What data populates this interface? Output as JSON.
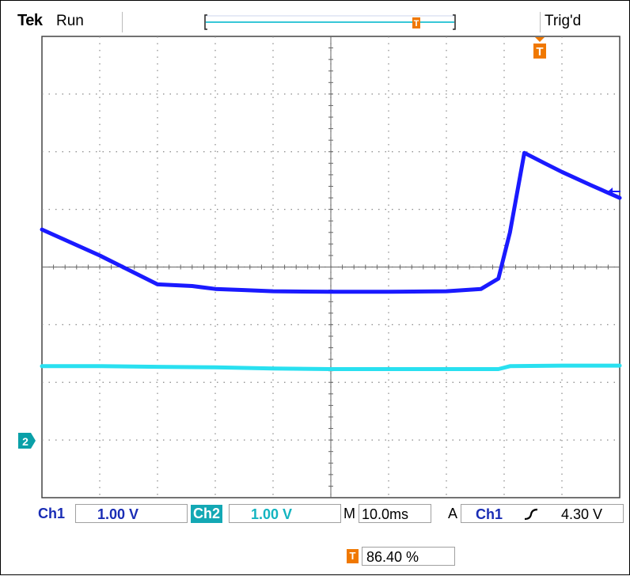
{
  "header": {
    "brand": "Tek",
    "run_state": "Run",
    "trigger_status": "Trig'd",
    "trigger_marker": "T"
  },
  "channel_markers": {
    "ch2_ground_label": "2"
  },
  "readouts": {
    "ch1_label": "Ch1",
    "ch1_scale": "1.00 V",
    "ch2_label": "Ch2",
    "ch2_scale": "1.00 V",
    "timebase_label": "M",
    "timebase": "10.0ms",
    "trigger_mode": "A",
    "trigger_source": "Ch1",
    "trigger_level": "4.30 V",
    "trigger_position": "86.40 %"
  },
  "colors": {
    "ch1_trace": "#1a1aff",
    "ch2_trace": "#29e0f0",
    "trigger": "#f07800",
    "ch2_marker": "#0aa0a8",
    "label_blue": "#1a2db5",
    "label_cyan": "#13b4c0"
  },
  "chart_data": {
    "type": "line",
    "title": "",
    "xlabel": "",
    "ylabel": "",
    "xlim": [
      0,
      10
    ],
    "ylim": [
      -4,
      4
    ],
    "grid": true,
    "x_units": "divisions",
    "y_units": "divisions",
    "series": [
      {
        "name": "Ch1",
        "color": "#1a1aff",
        "x": [
          0,
          1,
          1.5,
          2,
          2.6,
          3.0,
          3.5,
          4.0,
          5.0,
          6.0,
          7.0,
          7.6,
          7.9,
          8.1,
          8.35,
          8.7,
          9.0,
          9.5,
          10
        ],
        "y": [
          0.65,
          0.2,
          -0.05,
          -0.3,
          -0.33,
          -0.38,
          -0.4,
          -0.42,
          -0.43,
          -0.43,
          -0.42,
          -0.38,
          -0.2,
          0.6,
          1.98,
          1.8,
          1.65,
          1.42,
          1.2
        ]
      },
      {
        "name": "Ch2",
        "color": "#29e0f0",
        "x": [
          0,
          1,
          2,
          3,
          4,
          5,
          6,
          7,
          7.9,
          8.1,
          9,
          10
        ],
        "y": [
          -1.72,
          -1.72,
          -1.73,
          -1.74,
          -1.76,
          -1.77,
          -1.77,
          -1.77,
          -1.77,
          -1.72,
          -1.71,
          -1.71
        ]
      }
    ]
  }
}
